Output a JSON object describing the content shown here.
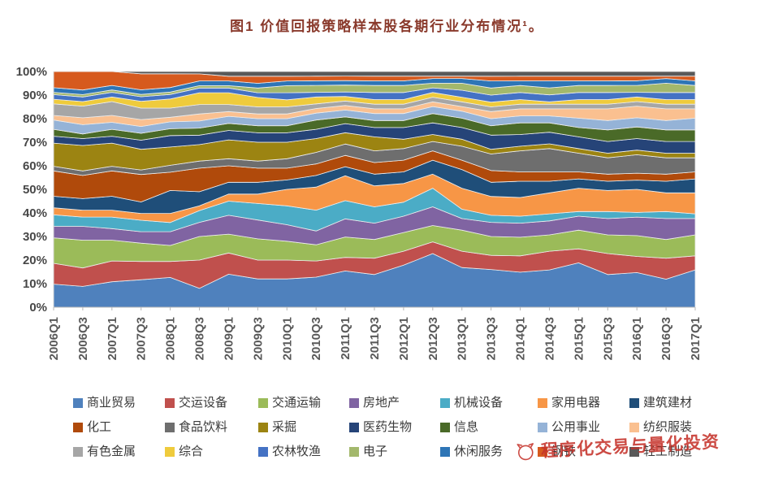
{
  "title": {
    "text": "图1 价值回报策略样本股各期行业分布情况¹。",
    "color": "#8a3a2c"
  },
  "watermark": {
    "text": "程序化交易与量化投资",
    "color": "#c5332b"
  },
  "chart_data": {
    "type": "area",
    "stacking": "percent",
    "title": "价值回报策略样本股各期行业分布情况",
    "xlabel": "",
    "ylabel": "",
    "ylim": [
      0,
      100
    ],
    "grid": false,
    "legend_position": "bottom",
    "y_ticks": [
      "100%",
      "90%",
      "80%",
      "70%",
      "60%",
      "50%",
      "40%",
      "30%",
      "20%",
      "10%",
      "0%"
    ],
    "categories": [
      "2006Q1",
      "2006Q3",
      "2007Q1",
      "2007Q3",
      "2008Q1",
      "2008Q3",
      "2009Q1",
      "2009Q3",
      "2010Q1",
      "2010Q3",
      "2011Q1",
      "2011Q3",
      "2012Q1",
      "2012Q3",
      "2013Q1",
      "2013Q3",
      "2014Q1",
      "2014Q3",
      "2015Q1",
      "2015Q3",
      "2016Q1",
      "2016Q3",
      "2017Q1"
    ],
    "series": [
      {
        "name": "商业贸易",
        "color": "#4F81BD",
        "values": [
          10,
          9,
          11,
          12,
          13,
          8,
          14,
          12,
          12,
          13,
          16,
          14,
          18,
          23,
          17,
          16,
          15,
          16,
          19,
          14,
          15,
          12,
          16
        ]
      },
      {
        "name": "交运设备",
        "color": "#C0504D",
        "values": [
          9,
          8,
          9,
          8,
          7,
          12,
          9,
          8,
          8,
          7,
          6,
          7,
          6,
          5,
          7,
          6,
          7,
          8,
          6,
          9,
          7,
          9,
          6
        ]
      },
      {
        "name": "交通运输",
        "color": "#9BBB59",
        "values": [
          11,
          12,
          9,
          8,
          7,
          10,
          8,
          9,
          8,
          7,
          9,
          8,
          8,
          7,
          9,
          8,
          8,
          7,
          8,
          8,
          9,
          8,
          9
        ]
      },
      {
        "name": "房地产",
        "color": "#8064A2",
        "values": [
          5,
          6,
          5,
          5,
          6,
          6,
          8,
          8,
          7,
          6,
          8,
          7,
          7,
          8,
          5,
          6,
          6,
          6,
          6,
          7,
          8,
          9,
          7
        ]
      },
      {
        "name": "机械设备",
        "color": "#4BACC6",
        "values": [
          5,
          4,
          5,
          5,
          4,
          5,
          6,
          7,
          8,
          9,
          8,
          7,
          6,
          8,
          4,
          3,
          3,
          3,
          2,
          3,
          2,
          3,
          2
        ]
      },
      {
        "name": "家用电器",
        "color": "#F79646",
        "values": [
          3,
          3,
          3,
          3,
          4,
          2,
          3,
          4,
          7,
          10,
          11,
          9,
          8,
          6,
          9,
          8,
          8,
          9,
          10,
          9,
          10,
          8,
          9
        ]
      },
      {
        "name": "建筑建材",
        "color": "#1F4E79",
        "values": [
          5,
          5,
          6,
          5,
          10,
          6,
          5,
          5,
          4,
          5,
          4,
          5,
          5,
          6,
          8,
          6,
          7,
          5,
          4,
          4,
          4,
          5,
          6
        ]
      },
      {
        "name": "化工",
        "color": "#B04A0B",
        "values": [
          11,
          10,
          11,
          12,
          8,
          10,
          7,
          6,
          5,
          5,
          5,
          5,
          5,
          4,
          4,
          5,
          4,
          4,
          3,
          3,
          3,
          3,
          3
        ]
      },
      {
        "name": "食品饮料",
        "color": "#6E6E6E",
        "values": [
          2,
          2,
          2,
          2,
          3,
          3,
          3,
          3,
          4,
          5,
          5,
          5,
          5,
          4,
          6,
          7,
          9,
          10,
          8,
          7,
          8,
          7,
          6
        ]
      },
      {
        "name": "采掘",
        "color": "#9C8412",
        "values": [
          10,
          11,
          10,
          9,
          8,
          7,
          8,
          8,
          7,
          6,
          5,
          6,
          4,
          3,
          3,
          2,
          2,
          2,
          2,
          2,
          2,
          2,
          2
        ]
      },
      {
        "name": "医药生物",
        "color": "#264478",
        "values": [
          3,
          3,
          3,
          4,
          5,
          4,
          4,
          4,
          4,
          4,
          4,
          4,
          5,
          5,
          5,
          6,
          5,
          5,
          5,
          5,
          5,
          5,
          5
        ]
      },
      {
        "name": "信息",
        "color": "#4A6A28",
        "values": [
          3,
          2,
          3,
          3,
          3,
          3,
          3,
          3,
          3,
          4,
          3,
          3,
          3,
          4,
          4,
          4,
          5,
          4,
          4,
          5,
          5,
          5,
          5
        ]
      },
      {
        "name": "公用事业",
        "color": "#95B3D7",
        "values": [
          4,
          4,
          3,
          3,
          3,
          3,
          3,
          3,
          3,
          3,
          3,
          3,
          3,
          3,
          3,
          3,
          3,
          3,
          4,
          4,
          4,
          4,
          5
        ]
      },
      {
        "name": "纺织服装",
        "color": "#FAC090",
        "values": [
          2,
          3,
          3,
          3,
          2,
          3,
          2,
          2,
          2,
          2,
          2,
          2,
          2,
          2,
          2,
          3,
          3,
          3,
          4,
          5,
          5,
          5,
          4
        ]
      },
      {
        "name": "有色金属",
        "color": "#A6A6A6",
        "values": [
          5,
          5,
          6,
          5,
          4,
          4,
          3,
          3,
          3,
          2,
          2,
          2,
          2,
          2,
          2,
          2,
          2,
          2,
          2,
          2,
          2,
          2,
          2
        ]
      },
      {
        "name": "综合",
        "color": "#EFCB3C",
        "values": [
          2,
          2,
          2,
          3,
          4,
          5,
          5,
          4,
          3,
          3,
          2,
          2,
          2,
          2,
          2,
          2,
          2,
          1,
          2,
          2,
          2,
          2,
          2
        ]
      },
      {
        "name": "农林牧渔",
        "color": "#4472C4",
        "values": [
          2,
          2,
          2,
          2,
          2,
          2,
          2,
          2,
          3,
          2,
          2,
          3,
          3,
          2,
          3,
          3,
          3,
          3,
          3,
          3,
          2,
          3,
          3
        ]
      },
      {
        "name": "电子",
        "color": "#A3B86C",
        "values": [
          1,
          1,
          1,
          1,
          1,
          1,
          1,
          2,
          3,
          3,
          3,
          3,
          3,
          2,
          3,
          3,
          3,
          3,
          3,
          3,
          3,
          4,
          3
        ]
      },
      {
        "name": "休闲服务",
        "color": "#2E75B6",
        "values": [
          2,
          2,
          2,
          2,
          2,
          2,
          2,
          2,
          2,
          2,
          2,
          2,
          2,
          2,
          2,
          3,
          2,
          3,
          2,
          2,
          2,
          2,
          2
        ]
      },
      {
        "name": "钢铁",
        "color": "#D65A1E",
        "values": [
          7,
          8,
          6,
          7,
          6,
          3,
          2,
          3,
          2,
          2,
          2,
          2,
          2,
          1,
          1,
          2,
          2,
          2,
          2,
          2,
          2,
          1,
          2
        ]
      },
      {
        "name": "轻工制造",
        "color": "#595959",
        "values": [
          0,
          0,
          0,
          1,
          1,
          1,
          2,
          2,
          2,
          2,
          2,
          2,
          2,
          2,
          2,
          2,
          2,
          2,
          2,
          2,
          2,
          2,
          2
        ]
      }
    ]
  }
}
